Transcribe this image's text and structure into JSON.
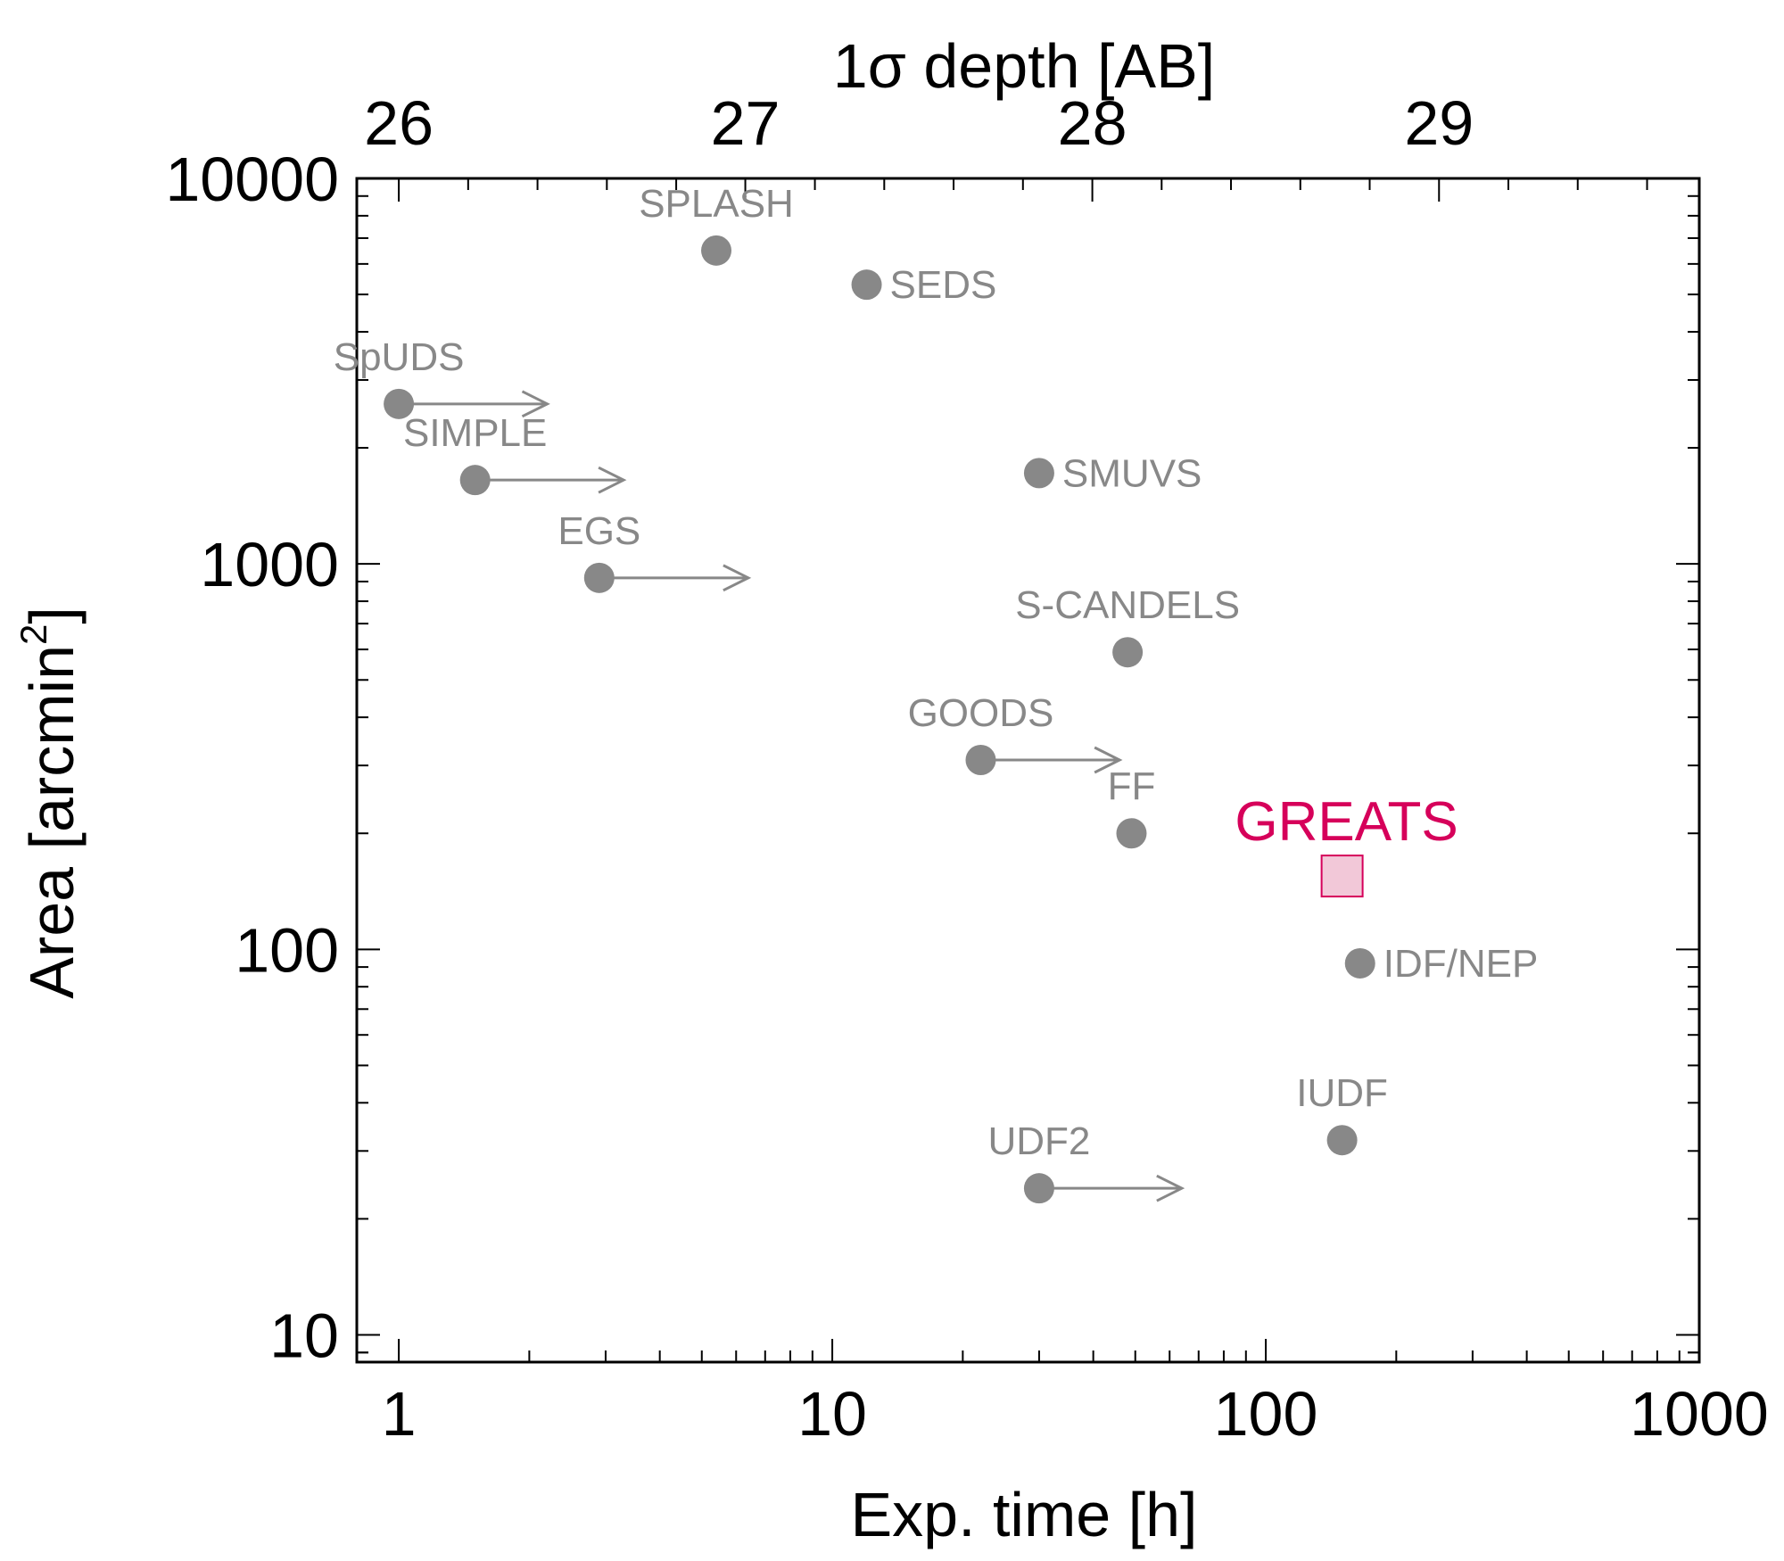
{
  "colors": {
    "point": "#888888",
    "highlight": "#d6005a",
    "highlight_fill": "#f2c8d8",
    "axis": "#000000"
  },
  "chart_data": {
    "type": "scatter",
    "xscale": "log",
    "yscale": "log",
    "xlabel": "Exp. time [h]",
    "ylabel": "Area [arcmin",
    "ylabel_sup": "2",
    "ylabel_close": "]",
    "top_axis_label": "1σ depth [AB]",
    "xlim": [
      0.8,
      1000
    ],
    "ylim": [
      8.5,
      10000
    ],
    "x_ticks": [
      {
        "value": 1,
        "label": "1"
      },
      {
        "value": 10,
        "label": "10"
      },
      {
        "value": 100,
        "label": "100"
      },
      {
        "value": 1000,
        "label": "1000"
      }
    ],
    "y_ticks": [
      {
        "value": 10,
        "label": "10"
      },
      {
        "value": 100,
        "label": "100"
      },
      {
        "value": 1000,
        "label": "1000"
      },
      {
        "value": 10000,
        "label": "10000"
      }
    ],
    "top_ticks": [
      {
        "label": "26",
        "exp_time": 1.0
      },
      {
        "label": "27",
        "exp_time": 6.3
      },
      {
        "label": "28",
        "exp_time": 39.8
      },
      {
        "label": "29",
        "exp_time": 251
      }
    ],
    "points": [
      {
        "name": "SPLASH",
        "x": 5.4,
        "y": 6500,
        "label_pos": "above"
      },
      {
        "name": "SEDS",
        "x": 12,
        "y": 5300,
        "label_pos": "right"
      },
      {
        "name": "SpUDS",
        "x": 1.0,
        "y": 2600,
        "label_pos": "above",
        "lower_limit": true,
        "arrow_to": 2.2
      },
      {
        "name": "SIMPLE",
        "x": 1.5,
        "y": 1650,
        "label_pos": "above",
        "lower_limit": true,
        "arrow_to": 3.3
      },
      {
        "name": "SMUVS",
        "x": 30,
        "y": 1720,
        "label_pos": "right"
      },
      {
        "name": "EGS",
        "x": 2.9,
        "y": 920,
        "label_pos": "above",
        "lower_limit": true,
        "arrow_to": 6.4
      },
      {
        "name": "S-CANDELS",
        "x": 48,
        "y": 590,
        "label_pos": "above"
      },
      {
        "name": "GOODS",
        "x": 22,
        "y": 310,
        "label_pos": "above",
        "lower_limit": true,
        "arrow_to": 46
      },
      {
        "name": "FF",
        "x": 49,
        "y": 200,
        "label_pos": "above"
      },
      {
        "name": "IDF/NEP",
        "x": 165,
        "y": 92,
        "label_pos": "right"
      },
      {
        "name": "IUDF",
        "x": 150,
        "y": 32,
        "label_pos": "above"
      },
      {
        "name": "UDF2",
        "x": 30,
        "y": 24,
        "label_pos": "above",
        "lower_limit": true,
        "arrow_to": 64
      }
    ],
    "highlight": {
      "name": "GREATS",
      "x": 150,
      "y": 155,
      "marker": "square"
    }
  }
}
